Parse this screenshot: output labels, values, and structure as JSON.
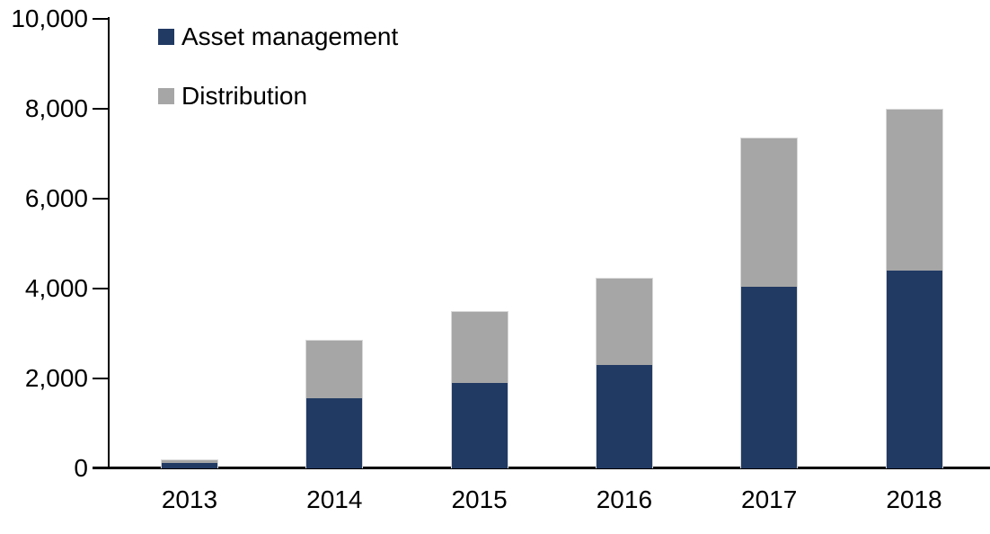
{
  "chart": {
    "background": "#ffffff",
    "axis_color": "#000000",
    "text_color": "#000000"
  },
  "chart_data": {
    "type": "bar",
    "stacked": true,
    "title": "",
    "xlabel": "",
    "ylabel": "",
    "categories": [
      "2013",
      "2014",
      "2015",
      "2016",
      "2017",
      "2018"
    ],
    "series": [
      {
        "name": "Asset management",
        "color": "#213a63",
        "values": [
          120,
          1570,
          1900,
          2310,
          4050,
          4410
        ]
      },
      {
        "name": "Distribution",
        "color": "#a6a6a6",
        "values": [
          80,
          1300,
          1610,
          1940,
          3320,
          3590
        ]
      }
    ],
    "totals": [
      200,
      2870,
      3510,
      4250,
      7370,
      8000
    ],
    "ylim": [
      0,
      10000
    ],
    "yticks": [
      {
        "value": 0,
        "label": "0"
      },
      {
        "value": 2000,
        "label": "2,000"
      },
      {
        "value": 4000,
        "label": "4,000"
      },
      {
        "value": 6000,
        "label": "6,000"
      },
      {
        "value": 8000,
        "label": "8,000"
      },
      {
        "value": 10000,
        "label": "10,000"
      }
    ],
    "legend_position": "top-left",
    "grid": false
  }
}
